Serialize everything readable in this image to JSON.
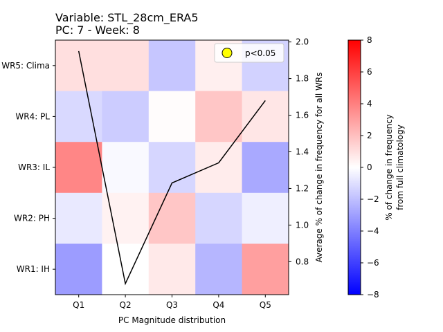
{
  "chart_data": {
    "type": "heatmap",
    "title_line1": "Variable: STL_28cm_ERA5",
    "title_line2": "PC: 7 - Week: 8",
    "xlabel": "PC Magnitude distribution",
    "ylabel_right": "Average % of change in frequency for all WRs",
    "colorbar_label_line1": "% of change in frequency",
    "colorbar_label_line2": "from full climatology",
    "x_categories": [
      "Q1",
      "Q2",
      "Q3",
      "Q4",
      "Q5"
    ],
    "y_categories": [
      "WR5: Clima",
      "WR4: PL",
      "WR3: IL",
      "WR2: PH",
      "WR1: IH"
    ],
    "heatmap_values": [
      [
        1.0,
        1.0,
        -1.8,
        0.5,
        -1.4
      ],
      [
        -1.2,
        -1.6,
        0.1,
        1.8,
        0.8
      ],
      [
        3.8,
        -0.2,
        -1.3,
        0.6,
        -2.7
      ],
      [
        -0.7,
        0.4,
        1.8,
        -1.3,
        -0.5
      ],
      [
        -3.1,
        0.0,
        0.7,
        -2.3,
        3.0
      ]
    ],
    "colorbar_range": [
      -8,
      8
    ],
    "colorbar_ticks": [
      -8,
      -6,
      -4,
      -2,
      0,
      2,
      4,
      6,
      8
    ],
    "line_series": {
      "values": [
        1.95,
        0.68,
        1.23,
        1.34,
        1.68
      ],
      "color": "#000000"
    },
    "right_axis_range": [
      0.62,
      2.01
    ],
    "right_axis_ticks": [
      "0.8",
      "1.0",
      "1.2",
      "1.4",
      "1.6",
      "1.8",
      "2.0"
    ],
    "legend": {
      "label": "p<0.05",
      "marker_color": "#ffff00",
      "position": "upper right"
    }
  }
}
